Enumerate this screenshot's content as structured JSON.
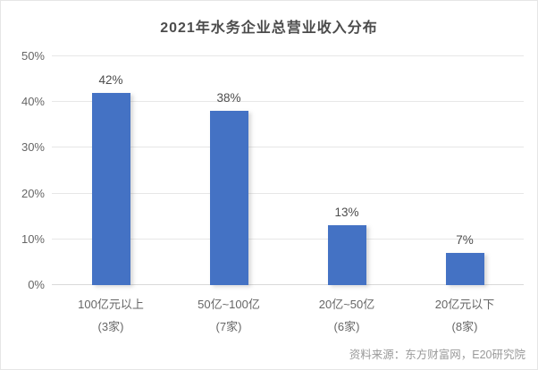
{
  "chart_data": {
    "type": "bar",
    "title": "2021年水务企业总营业收入分布",
    "categories": [
      "100亿元以上",
      "50亿~100亿",
      "20亿~50亿",
      "20亿元以下"
    ],
    "category_sublabels": [
      "(3家)",
      "(7家)",
      "(6家)",
      "(8家)"
    ],
    "values": [
      42,
      38,
      13,
      7
    ],
    "value_labels": [
      "42%",
      "38%",
      "13%",
      "7%"
    ],
    "xlabel": "",
    "ylabel": "",
    "ylim": [
      0,
      50
    ],
    "ytick_values": [
      0,
      10,
      20,
      30,
      40,
      50
    ],
    "ytick_labels": [
      "0%",
      "10%",
      "20%",
      "30%",
      "40%",
      "50%"
    ],
    "grid": true,
    "legend_position": "none",
    "bar_color": "#4472C4",
    "gridline_color": "#e7e7e7"
  },
  "source": "资料来源：东方财富网，E20研究院"
}
